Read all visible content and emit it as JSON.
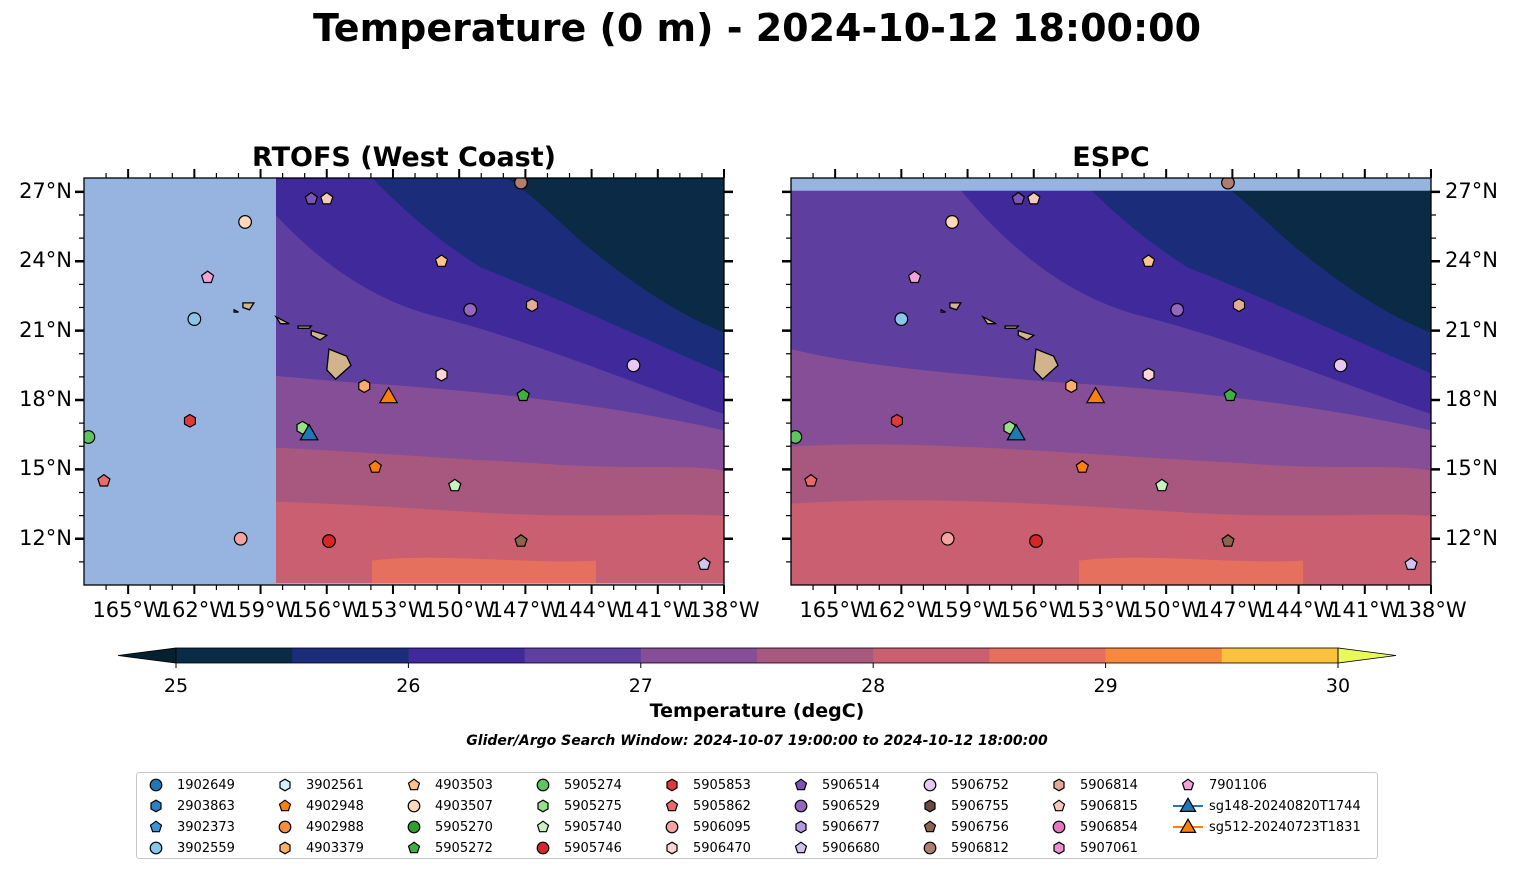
{
  "title": "Temperature (0 m) - 2024-10-12 18:00:00",
  "subtitle": "Glider/Argo Search Window: 2024-10-07 19:00:00 to 2024-10-12 18:00:00",
  "chart_data": {
    "type": "heatmap",
    "panels": [
      {
        "title": "RTOFS (West Coast)",
        "side": "left"
      },
      {
        "title": "ESPC",
        "side": "right"
      }
    ],
    "lon_range": [
      -167,
      -138
    ],
    "lat_range": [
      10,
      27.6
    ],
    "x_ticks": [
      {
        "value": -165,
        "label": "165°W"
      },
      {
        "value": -162,
        "label": "162°W"
      },
      {
        "value": -159,
        "label": "159°W"
      },
      {
        "value": -156,
        "label": "156°W"
      },
      {
        "value": -153,
        "label": "153°W"
      },
      {
        "value": -150,
        "label": "150°W"
      },
      {
        "value": -147,
        "label": "147°W"
      },
      {
        "value": -144,
        "label": "144°W"
      },
      {
        "value": -141,
        "label": "141°W"
      },
      {
        "value": -138,
        "label": "138°W"
      }
    ],
    "y_ticks": [
      {
        "value": 27,
        "label": "27°N"
      },
      {
        "value": 24,
        "label": "24°N"
      },
      {
        "value": 21,
        "label": "21°N"
      },
      {
        "value": 18,
        "label": "18°N"
      },
      {
        "value": 15,
        "label": "15°N"
      },
      {
        "value": 12,
        "label": "12°N"
      }
    ],
    "colorbar": {
      "label": "Temperature (degC)",
      "min": 25,
      "max": 30,
      "step": 0.5,
      "tick_labels": [
        "25",
        "26",
        "27",
        "28",
        "29",
        "30"
      ],
      "tick_values": [
        25,
        26,
        27,
        28,
        29,
        30
      ],
      "colors": [
        "#0a2a45",
        "#1b2d7a",
        "#40299a",
        "#5e3e9e",
        "#864e96",
        "#a8587f",
        "#c95f70",
        "#e6705e",
        "#f8883e",
        "#fbc23d"
      ],
      "under_color": "#06202f",
      "over_color": "#e7fa5a"
    },
    "floats": [
      {
        "id": "1902649",
        "marker": "circle",
        "color": "#1f77b4"
      },
      {
        "id": "2903863",
        "marker": "hexagon",
        "color": "#2a82c5"
      },
      {
        "id": "3902373",
        "marker": "pentagon",
        "color": "#3b93d8"
      },
      {
        "id": "3902559",
        "marker": "circle",
        "color": "#8ac6ea",
        "lon": -162,
        "lat": 21.5
      },
      {
        "id": "3902561",
        "marker": "hexagon",
        "color": "#d3eefb"
      },
      {
        "id": "4902948",
        "marker": "pentagon",
        "color": "#ff7f0e",
        "lon": -153.8,
        "lat": 15.1
      },
      {
        "id": "4902988",
        "marker": "circle",
        "color": "#fd8d3c"
      },
      {
        "id": "4903379",
        "marker": "hexagon",
        "color": "#fdae6b",
        "lon": -154.3,
        "lat": 18.6
      },
      {
        "id": "4903503",
        "marker": "pentagon",
        "color": "#fdc38d",
        "lon": -150.8,
        "lat": 24.0
      },
      {
        "id": "4903507",
        "marker": "circle",
        "color": "#fdd9b8",
        "lon": -159.7,
        "lat": 25.7
      },
      {
        "id": "5905270",
        "marker": "circle",
        "color": "#2ca02c"
      },
      {
        "id": "5905272",
        "marker": "pentagon",
        "color": "#3fb03f",
        "lon": -147.1,
        "lat": 18.2
      },
      {
        "id": "5905274",
        "marker": "circle",
        "color": "#5fc45f",
        "lon": -166.8,
        "lat": 16.4
      },
      {
        "id": "5905275",
        "marker": "hexagon",
        "color": "#98df8a",
        "lon": -157.1,
        "lat": 16.8
      },
      {
        "id": "5905740",
        "marker": "pentagon",
        "color": "#c5f2c0",
        "lon": -150.2,
        "lat": 14.3
      },
      {
        "id": "5905746",
        "marker": "circle",
        "color": "#d62728",
        "lon": -155.9,
        "lat": 11.9
      },
      {
        "id": "5905853",
        "marker": "hexagon",
        "color": "#e0393a",
        "lon": -162.2,
        "lat": 17.1
      },
      {
        "id": "5905862",
        "marker": "pentagon",
        "color": "#e86a6a",
        "lon": -166.1,
        "lat": 14.5
      },
      {
        "id": "5906095",
        "marker": "circle",
        "color": "#f4a3a3",
        "lon": -159.9,
        "lat": 12.0
      },
      {
        "id": "5906470",
        "marker": "hexagon",
        "color": "#fcd6d6",
        "lon": -150.8,
        "lat": 19.1
      },
      {
        "id": "5906514",
        "marker": "pentagon",
        "color": "#7b55b3",
        "lon": -156.7,
        "lat": 26.7
      },
      {
        "id": "5906529",
        "marker": "circle",
        "color": "#9467bd",
        "lon": -149.5,
        "lat": 21.9
      },
      {
        "id": "5906677",
        "marker": "hexagon",
        "color": "#b49bdd"
      },
      {
        "id": "5906680",
        "marker": "pentagon",
        "color": "#d2c2f0",
        "lon": -138.9,
        "lat": 10.9
      },
      {
        "id": "5906752",
        "marker": "circle",
        "color": "#e6c8f2",
        "lon": -142.1,
        "lat": 19.5
      },
      {
        "id": "5906755",
        "marker": "hexagon",
        "color": "#6b4a3e"
      },
      {
        "id": "5906756",
        "marker": "pentagon",
        "color": "#8c6250",
        "lon": -147.2,
        "lat": 11.9
      },
      {
        "id": "5906812",
        "marker": "circle",
        "color": "#b07d6e",
        "lon": -147.2,
        "lat": 27.4
      },
      {
        "id": "5906814",
        "marker": "hexagon",
        "color": "#e2ab96",
        "lon": -146.7,
        "lat": 22.1
      },
      {
        "id": "5906815",
        "marker": "pentagon",
        "color": "#f7c9b8",
        "lon": -156.0,
        "lat": 26.7
      },
      {
        "id": "5906854",
        "marker": "circle",
        "color": "#e377c2"
      },
      {
        "id": "5907061",
        "marker": "hexagon",
        "color": "#ea8fd0"
      },
      {
        "id": "7901106",
        "marker": "pentagon",
        "color": "#f5a3da",
        "lon": -161.4,
        "lat": 23.3
      }
    ],
    "gliders": [
      {
        "id": "sg148-20240820T1744",
        "marker": "triangle",
        "color": "#1f77b4",
        "lon": -156.8,
        "lat": 16.5
      },
      {
        "id": "sg512-20240723T1831",
        "marker": "triangle",
        "color": "#ff7f0e",
        "lon": -153.2,
        "lat": 18.1
      }
    ]
  }
}
